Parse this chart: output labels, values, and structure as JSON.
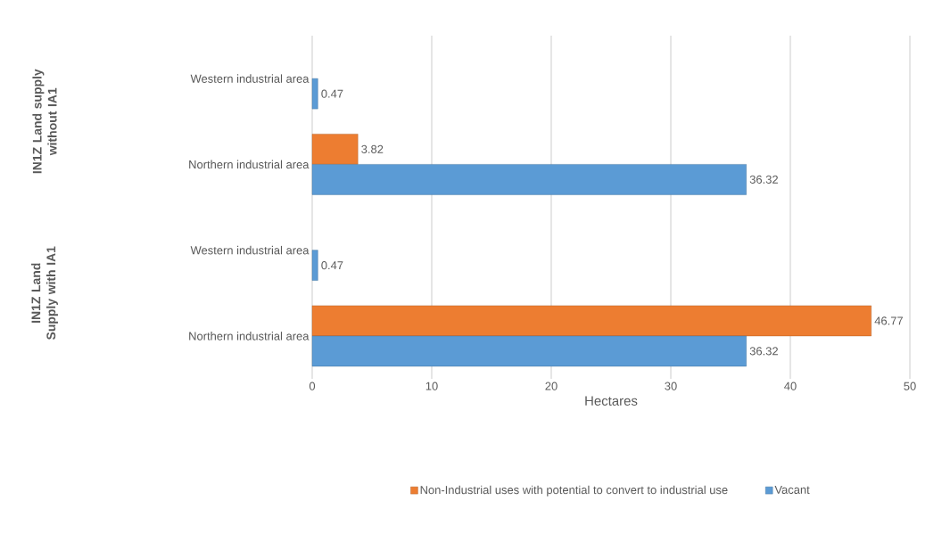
{
  "chart_data": {
    "type": "bar",
    "orientation": "horizontal",
    "xlabel": "Hectares",
    "categories": [
      "Western industrial area",
      "Northern industrial area",
      "Western industrial area",
      "Northern industrial area"
    ],
    "series": [
      {
        "name": "Non-Industrial uses with potential to convert to industrial use",
        "color": "#ed7d31",
        "values": [
          null,
          3.82,
          null,
          46.77
        ]
      },
      {
        "name": "Vacant",
        "color": "#5b9bd5",
        "values": [
          0.47,
          36.32,
          0.47,
          36.32
        ]
      }
    ],
    "annotations": [
      "IN1Z Land supply without IA1",
      "IN1Z Land Supply with IA1"
    ],
    "xlim": [
      0,
      50
    ],
    "xticks": [
      0,
      10,
      20,
      30,
      40,
      50
    ],
    "grid": "x",
    "legend": "bottom",
    "data_labels": true
  }
}
